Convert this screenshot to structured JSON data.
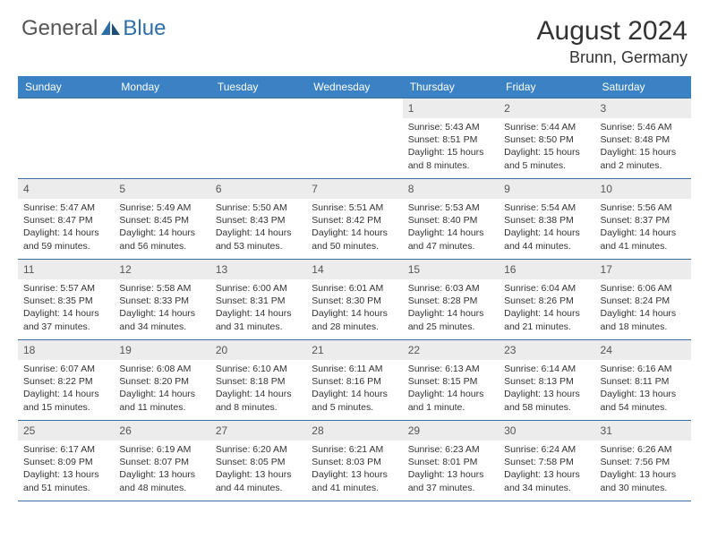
{
  "logo": {
    "text1": "General",
    "text2": "Blue",
    "color1": "#6b6b6b",
    "color2": "#2f6fa8"
  },
  "title": "August 2024",
  "location": "Brunn, Germany",
  "header_bg": "#3b82c4",
  "border_color": "#3b6ea0",
  "daynum_bg": "#ececec",
  "weekdays": [
    "Sunday",
    "Monday",
    "Tuesday",
    "Wednesday",
    "Thursday",
    "Friday",
    "Saturday"
  ],
  "weeks": [
    [
      null,
      null,
      null,
      null,
      {
        "n": "1",
        "sr": "5:43 AM",
        "ss": "8:51 PM",
        "dl": "15 hours and 8 minutes."
      },
      {
        "n": "2",
        "sr": "5:44 AM",
        "ss": "8:50 PM",
        "dl": "15 hours and 5 minutes."
      },
      {
        "n": "3",
        "sr": "5:46 AM",
        "ss": "8:48 PM",
        "dl": "15 hours and 2 minutes."
      }
    ],
    [
      {
        "n": "4",
        "sr": "5:47 AM",
        "ss": "8:47 PM",
        "dl": "14 hours and 59 minutes."
      },
      {
        "n": "5",
        "sr": "5:49 AM",
        "ss": "8:45 PM",
        "dl": "14 hours and 56 minutes."
      },
      {
        "n": "6",
        "sr": "5:50 AM",
        "ss": "8:43 PM",
        "dl": "14 hours and 53 minutes."
      },
      {
        "n": "7",
        "sr": "5:51 AM",
        "ss": "8:42 PM",
        "dl": "14 hours and 50 minutes."
      },
      {
        "n": "8",
        "sr": "5:53 AM",
        "ss": "8:40 PM",
        "dl": "14 hours and 47 minutes."
      },
      {
        "n": "9",
        "sr": "5:54 AM",
        "ss": "8:38 PM",
        "dl": "14 hours and 44 minutes."
      },
      {
        "n": "10",
        "sr": "5:56 AM",
        "ss": "8:37 PM",
        "dl": "14 hours and 41 minutes."
      }
    ],
    [
      {
        "n": "11",
        "sr": "5:57 AM",
        "ss": "8:35 PM",
        "dl": "14 hours and 37 minutes."
      },
      {
        "n": "12",
        "sr": "5:58 AM",
        "ss": "8:33 PM",
        "dl": "14 hours and 34 minutes."
      },
      {
        "n": "13",
        "sr": "6:00 AM",
        "ss": "8:31 PM",
        "dl": "14 hours and 31 minutes."
      },
      {
        "n": "14",
        "sr": "6:01 AM",
        "ss": "8:30 PM",
        "dl": "14 hours and 28 minutes."
      },
      {
        "n": "15",
        "sr": "6:03 AM",
        "ss": "8:28 PM",
        "dl": "14 hours and 25 minutes."
      },
      {
        "n": "16",
        "sr": "6:04 AM",
        "ss": "8:26 PM",
        "dl": "14 hours and 21 minutes."
      },
      {
        "n": "17",
        "sr": "6:06 AM",
        "ss": "8:24 PM",
        "dl": "14 hours and 18 minutes."
      }
    ],
    [
      {
        "n": "18",
        "sr": "6:07 AM",
        "ss": "8:22 PM",
        "dl": "14 hours and 15 minutes."
      },
      {
        "n": "19",
        "sr": "6:08 AM",
        "ss": "8:20 PM",
        "dl": "14 hours and 11 minutes."
      },
      {
        "n": "20",
        "sr": "6:10 AM",
        "ss": "8:18 PM",
        "dl": "14 hours and 8 minutes."
      },
      {
        "n": "21",
        "sr": "6:11 AM",
        "ss": "8:16 PM",
        "dl": "14 hours and 5 minutes."
      },
      {
        "n": "22",
        "sr": "6:13 AM",
        "ss": "8:15 PM",
        "dl": "14 hours and 1 minute."
      },
      {
        "n": "23",
        "sr": "6:14 AM",
        "ss": "8:13 PM",
        "dl": "13 hours and 58 minutes."
      },
      {
        "n": "24",
        "sr": "6:16 AM",
        "ss": "8:11 PM",
        "dl": "13 hours and 54 minutes."
      }
    ],
    [
      {
        "n": "25",
        "sr": "6:17 AM",
        "ss": "8:09 PM",
        "dl": "13 hours and 51 minutes."
      },
      {
        "n": "26",
        "sr": "6:19 AM",
        "ss": "8:07 PM",
        "dl": "13 hours and 48 minutes."
      },
      {
        "n": "27",
        "sr": "6:20 AM",
        "ss": "8:05 PM",
        "dl": "13 hours and 44 minutes."
      },
      {
        "n": "28",
        "sr": "6:21 AM",
        "ss": "8:03 PM",
        "dl": "13 hours and 41 minutes."
      },
      {
        "n": "29",
        "sr": "6:23 AM",
        "ss": "8:01 PM",
        "dl": "13 hours and 37 minutes."
      },
      {
        "n": "30",
        "sr": "6:24 AM",
        "ss": "7:58 PM",
        "dl": "13 hours and 34 minutes."
      },
      {
        "n": "31",
        "sr": "6:26 AM",
        "ss": "7:56 PM",
        "dl": "13 hours and 30 minutes."
      }
    ]
  ],
  "labels": {
    "sunrise": "Sunrise:",
    "sunset": "Sunset:",
    "daylight": "Daylight:"
  }
}
